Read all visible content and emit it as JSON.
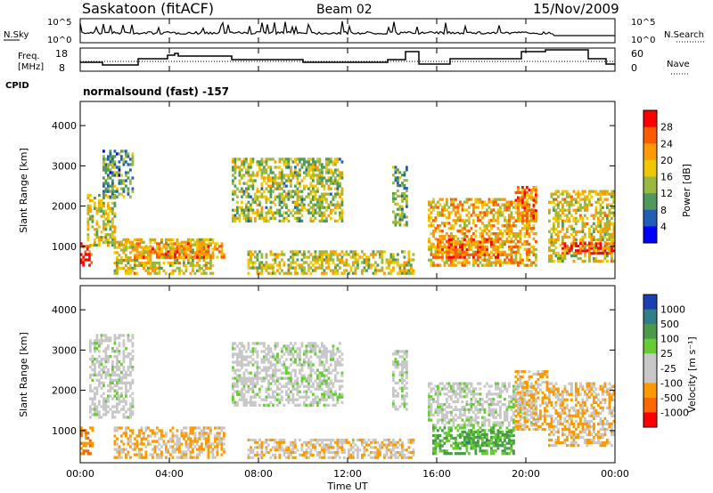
{
  "header": {
    "station": "Saskatoon (fitACF)",
    "beam": "Beam 02",
    "date": "15/Nov/2009"
  },
  "panels": {
    "nsky": {
      "label": "N.Sky",
      "ticks": [
        "10^5",
        "10^0"
      ],
      "right_ticks": [
        "10^5",
        "10^0"
      ],
      "right_label": "N.Search"
    },
    "freq": {
      "label_top": "Freq.",
      "label_bottom": "[MHz]",
      "ticks": [
        "18",
        "8"
      ],
      "right_ticks": [
        "60",
        "0"
      ],
      "right_label": "Nave"
    },
    "cpid": {
      "label": "CPID",
      "value": "normalsound (fast) -157"
    }
  },
  "chart_data": [
    {
      "type": "heatmap",
      "name": "power",
      "ylabel": "Slant Range [km]",
      "ylim": [
        200,
        4600
      ],
      "yticks": [
        "1000",
        "2000",
        "3000",
        "4000"
      ],
      "xlim": [
        0,
        24
      ],
      "colorbar": {
        "label": "Power [dB]",
        "ticks": [
          "28",
          "24",
          "20",
          "16",
          "12",
          "8",
          "4"
        ],
        "colors": [
          "#ff0000",
          "#ff5a00",
          "#ff9a00",
          "#f0c800",
          "#99b840",
          "#4f9a5a",
          "#1f5fb8",
          "#0000ff"
        ]
      },
      "echo_regions": [
        {
          "t0": 0.0,
          "t1": 0.55,
          "r0": 500,
          "r1": 1100,
          "level": 0.95
        },
        {
          "t0": 0.3,
          "t1": 1.6,
          "r0": 1000,
          "r1": 2300,
          "level": 0.5
        },
        {
          "t0": 1.0,
          "t1": 2.4,
          "r0": 2200,
          "r1": 3400,
          "level": 0.3
        },
        {
          "t0": 1.5,
          "t1": 6.0,
          "r0": 300,
          "r1": 1200,
          "level": 0.55
        },
        {
          "t0": 2.5,
          "t1": 6.5,
          "r0": 700,
          "r1": 1100,
          "level": 0.75
        },
        {
          "t0": 6.8,
          "t1": 11.8,
          "r0": 1600,
          "r1": 3200,
          "level": 0.45
        },
        {
          "t0": 7.5,
          "t1": 15.0,
          "r0": 300,
          "r1": 900,
          "level": 0.5
        },
        {
          "t0": 14.0,
          "t1": 14.7,
          "r0": 1500,
          "r1": 3000,
          "level": 0.35
        },
        {
          "t0": 15.6,
          "t1": 20.5,
          "r0": 500,
          "r1": 2200,
          "level": 0.65
        },
        {
          "t0": 16.0,
          "t1": 18.8,
          "r0": 700,
          "r1": 1200,
          "level": 0.85
        },
        {
          "t0": 19.5,
          "t1": 20.5,
          "r0": 1600,
          "r1": 2500,
          "level": 0.8
        },
        {
          "t0": 21.0,
          "t1": 24.0,
          "r0": 600,
          "r1": 2400,
          "level": 0.55
        },
        {
          "t0": 21.6,
          "t1": 24.0,
          "r0": 800,
          "r1": 1100,
          "level": 0.95
        }
      ]
    },
    {
      "type": "heatmap",
      "name": "velocity",
      "ylabel": "Slant Range [km]",
      "xlabel": "Time UT",
      "ylim": [
        200,
        4600
      ],
      "yticks": [
        "1000",
        "2000",
        "3000",
        "4000"
      ],
      "xlim": [
        0,
        24
      ],
      "xticks": [
        "00:00",
        "04:00",
        "08:00",
        "12:00",
        "16:00",
        "20:00",
        "00:00"
      ],
      "colorbar": {
        "label": "Velocity [m s⁻¹]",
        "ticks": [
          "1000",
          "500",
          "100",
          "25",
          "-25",
          "-100",
          "-500",
          "-1000"
        ],
        "colors": [
          "#1a3fb0",
          "#2f7f8a",
          "#4a9a4a",
          "#66cc33",
          "#c8c8c8",
          "#c8c8c8",
          "#ff9900",
          "#ff6600",
          "#ff0000"
        ]
      },
      "echo_regions": [
        {
          "t0": 0.0,
          "t1": 0.6,
          "r0": 400,
          "r1": 1100,
          "level": -0.6
        },
        {
          "t0": 0.4,
          "t1": 2.4,
          "r0": 1300,
          "r1": 3400,
          "level": 0.0
        },
        {
          "t0": 1.5,
          "t1": 6.5,
          "r0": 300,
          "r1": 1100,
          "level": -0.4
        },
        {
          "t0": 6.8,
          "t1": 11.8,
          "r0": 1600,
          "r1": 3200,
          "level": 0.0
        },
        {
          "t0": 7.5,
          "t1": 15.0,
          "r0": 300,
          "r1": 800,
          "level": -0.35
        },
        {
          "t0": 14.0,
          "t1": 14.7,
          "r0": 1500,
          "r1": 3000,
          "level": 0.0
        },
        {
          "t0": 15.6,
          "t1": 20.5,
          "r0": 1100,
          "r1": 2200,
          "level": 0.0
        },
        {
          "t0": 15.8,
          "t1": 19.5,
          "r0": 400,
          "r1": 1100,
          "level": 0.35
        },
        {
          "t0": 17.0,
          "t1": 19.4,
          "r0": 600,
          "r1": 1000,
          "level": 0.45
        },
        {
          "t0": 19.5,
          "t1": 21.0,
          "r0": 1000,
          "r1": 2500,
          "level": -0.4
        },
        {
          "t0": 21.0,
          "t1": 24.0,
          "r0": 600,
          "r1": 2200,
          "level": -0.4
        }
      ]
    }
  ]
}
